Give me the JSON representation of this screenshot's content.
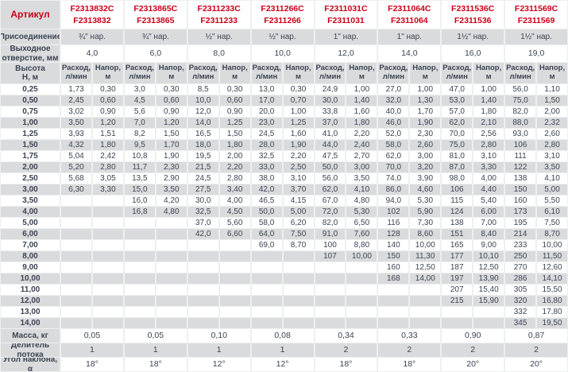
{
  "colors": {
    "accent_red": "#cc0019",
    "text_navy": "#3b4453",
    "stripe_gray": "#dadbdc",
    "cell_white": "#ffffff",
    "gutter_gray": "#eef0f0"
  },
  "chart_data": {
    "type": "table",
    "corner_label": "Артикул",
    "row_labels": {
      "connection": "Присоединение",
      "outlet": "Выходное\nотверстие, мм",
      "height": "Высота\nН, м",
      "mass": "Масса, кг",
      "divider": "Делитель потока",
      "angle": "Угол наклона, α"
    },
    "sub_headers": {
      "flow": "Расход,\nл/мин",
      "head": "Напор,\nм"
    },
    "products": [
      {
        "articles": [
          "F2313832C",
          "F2313832"
        ],
        "connection": "¾\" нар.",
        "outlet_mm": "4,0",
        "mass_kg": "0,05",
        "flow_divider": "1",
        "angle": "18°"
      },
      {
        "articles": [
          "F2313865C",
          "F2313865"
        ],
        "connection": "¾\" нар.",
        "outlet_mm": "6,0",
        "mass_kg": "0,05",
        "flow_divider": "1",
        "angle": "18°"
      },
      {
        "articles": [
          "F2311233C",
          "F2311233"
        ],
        "connection": "½\" нар.",
        "outlet_mm": "8,0",
        "mass_kg": "0,10",
        "flow_divider": "1",
        "angle": "12°"
      },
      {
        "articles": [
          "F2311266C",
          "F2311266"
        ],
        "connection": "½\" нар.",
        "outlet_mm": "10,0",
        "mass_kg": "0,08",
        "flow_divider": "1",
        "angle": "12°"
      },
      {
        "articles": [
          "F2311031C",
          "F2311031"
        ],
        "connection": "1\" нар.",
        "outlet_mm": "12,0",
        "mass_kg": "0,34",
        "flow_divider": "2",
        "angle": "18°"
      },
      {
        "articles": [
          "F2311064C",
          "F2311064"
        ],
        "connection": "1\" нар.",
        "outlet_mm": "14,0",
        "mass_kg": "0,33",
        "flow_divider": "2",
        "angle": "18°"
      },
      {
        "articles": [
          "F2311536C",
          "F2311536"
        ],
        "connection": "1½\" нар.",
        "outlet_mm": "16,0",
        "mass_kg": "0,90",
        "flow_divider": "2",
        "angle": "20°"
      },
      {
        "articles": [
          "F2311569C",
          "F2311569"
        ],
        "connection": "1½\" нар.",
        "outlet_mm": "19,0",
        "mass_kg": "0,87",
        "flow_divider": "2",
        "angle": "20°"
      }
    ],
    "heights": [
      "0,25",
      "0,50",
      "0,75",
      "1,00",
      "1,25",
      "1,50",
      "1,75",
      "2,00",
      "2,50",
      "3,00",
      "3,50",
      "4,00",
      "5,00",
      "6,00",
      "7,00",
      "8,00",
      "9,00",
      "10,00",
      "11,00",
      "12,00",
      "13,00",
      "14,00"
    ],
    "rows": [
      [
        [
          "1,73",
          "0,30"
        ],
        [
          "3,0",
          "0,30"
        ],
        [
          "8,5",
          "0,30"
        ],
        [
          "13,0",
          "0,30"
        ],
        [
          "24,9",
          "1,00"
        ],
        [
          "27,0",
          "1,00"
        ],
        [
          "47,0",
          "1,00"
        ],
        [
          "56,0",
          "1,10"
        ]
      ],
      [
        [
          "2,45",
          "0,60"
        ],
        [
          "4,5",
          "0,60"
        ],
        [
          "10,0",
          "0,60"
        ],
        [
          "17,0",
          "0,70"
        ],
        [
          "30,0",
          "1,40"
        ],
        [
          "32,0",
          "1,30"
        ],
        [
          "53,0",
          "1,40"
        ],
        [
          "75,0",
          "1,50"
        ]
      ],
      [
        [
          "3,02",
          "0,90"
        ],
        [
          "5,6",
          "0,90"
        ],
        [
          "12,0",
          "0,90"
        ],
        [
          "20,0",
          "1,00"
        ],
        [
          "33,8",
          "1,60"
        ],
        [
          "40,0",
          "1,70"
        ],
        [
          "57,0",
          "1,80"
        ],
        [
          "82,0",
          "2,00"
        ]
      ],
      [
        [
          "3,50",
          "1,20"
        ],
        [
          "7,0",
          "1,20"
        ],
        [
          "14,0",
          "1,25"
        ],
        [
          "23,0",
          "1,25"
        ],
        [
          "37,0",
          "1,80"
        ],
        [
          "46,0",
          "1,90"
        ],
        [
          "62,0",
          "2,10"
        ],
        [
          "88,0",
          "2,32"
        ]
      ],
      [
        [
          "3,93",
          "1,51"
        ],
        [
          "8,2",
          "1,50"
        ],
        [
          "16,5",
          "1,50"
        ],
        [
          "24,5",
          "1,60"
        ],
        [
          "41,0",
          "2,20"
        ],
        [
          "52,0",
          "2,30"
        ],
        [
          "70,0",
          "2,56"
        ],
        [
          "93,0",
          "2,60"
        ]
      ],
      [
        [
          "4,32",
          "1,80"
        ],
        [
          "9,5",
          "1,70"
        ],
        [
          "18,0",
          "1,80"
        ],
        [
          "28,0",
          "1,90"
        ],
        [
          "44,0",
          "2,40"
        ],
        [
          "58,0",
          "2,60"
        ],
        [
          "75,0",
          "2,80"
        ],
        [
          "106",
          "2,80"
        ]
      ],
      [
        [
          "5,04",
          "2,42"
        ],
        [
          "10,8",
          "1,90"
        ],
        [
          "19,5",
          "2,00"
        ],
        [
          "32,5",
          "2,20"
        ],
        [
          "47,5",
          "2,70"
        ],
        [
          "62,0",
          "3,00"
        ],
        [
          "81,0",
          "3,10"
        ],
        [
          "111",
          "3,10"
        ]
      ],
      [
        [
          "5,20",
          "2,80"
        ],
        [
          "11,7",
          "2,30"
        ],
        [
          "21,5",
          "2,20"
        ],
        [
          "33,0",
          "2,50"
        ],
        [
          "50,0",
          "3,00"
        ],
        [
          "70,0",
          "3,20"
        ],
        [
          "87,0",
          "3,30"
        ],
        [
          "122",
          "3,50"
        ]
      ],
      [
        [
          "5,68",
          "3,05"
        ],
        [
          "13,5",
          "2,90"
        ],
        [
          "24,5",
          "2,80"
        ],
        [
          "38,0",
          "3,10"
        ],
        [
          "56,0",
          "3,50"
        ],
        [
          "74,0",
          "3,90"
        ],
        [
          "98,0",
          "4,00"
        ],
        [
          "138",
          "4,10"
        ]
      ],
      [
        [
          "6,30",
          "3,30"
        ],
        [
          "15,0",
          "3,50"
        ],
        [
          "27,5",
          "3,40"
        ],
        [
          "42,0",
          "3,70"
        ],
        [
          "62,0",
          "4,10"
        ],
        [
          "86,0",
          "4,60"
        ],
        [
          "106",
          "4,40"
        ],
        [
          "150",
          "5,00"
        ]
      ],
      [
        null,
        [
          "16,0",
          "4,20"
        ],
        [
          "30,0",
          "4,00"
        ],
        [
          "46,5",
          "4,15"
        ],
        [
          "67,0",
          "4,80"
        ],
        [
          "94,0",
          "5,30"
        ],
        [
          "115",
          "5,40"
        ],
        [
          "160",
          "5,50"
        ]
      ],
      [
        null,
        [
          "16,8",
          "4,80"
        ],
        [
          "32,5",
          "4,50"
        ],
        [
          "50,0",
          "5,00"
        ],
        [
          "72,0",
          "5,30"
        ],
        [
          "102",
          "5,90"
        ],
        [
          "124",
          "6,00"
        ],
        [
          "173",
          "6,10"
        ]
      ],
      [
        null,
        null,
        [
          "37,0",
          "5,60"
        ],
        [
          "58,0",
          "6,20"
        ],
        [
          "82,0",
          "6,50"
        ],
        [
          "116",
          "7,30"
        ],
        [
          "138",
          "7,00"
        ],
        [
          "195",
          "7,50"
        ]
      ],
      [
        null,
        null,
        [
          "42,0",
          "6,60"
        ],
        [
          "64,0",
          "7,50"
        ],
        [
          "91,0",
          "7,60"
        ],
        [
          "128",
          "8,60"
        ],
        [
          "151",
          "8,40"
        ],
        [
          "214",
          "8,70"
        ]
      ],
      [
        null,
        null,
        null,
        [
          "69,0",
          "8,70"
        ],
        [
          "100",
          "8,80"
        ],
        [
          "140",
          "10,00"
        ],
        [
          "165",
          "9,00"
        ],
        [
          "233",
          "10,00"
        ]
      ],
      [
        null,
        null,
        null,
        null,
        [
          "107",
          "10,00"
        ],
        [
          "150",
          "11,30"
        ],
        [
          "177",
          "10,10"
        ],
        [
          "250",
          "11,50"
        ]
      ],
      [
        null,
        null,
        null,
        null,
        null,
        [
          "160",
          "12,50"
        ],
        [
          "187",
          "12,50"
        ],
        [
          "270",
          "12,60"
        ]
      ],
      [
        null,
        null,
        null,
        null,
        null,
        [
          "168",
          "14,00"
        ],
        [
          "197",
          "13,90"
        ],
        [
          "286",
          "14,10"
        ]
      ],
      [
        null,
        null,
        null,
        null,
        null,
        null,
        [
          "207",
          "15,40"
        ],
        [
          "305",
          "15,50"
        ]
      ],
      [
        null,
        null,
        null,
        null,
        null,
        null,
        [
          "215",
          "15,90"
        ],
        [
          "320",
          "16,80"
        ]
      ],
      [
        null,
        null,
        null,
        null,
        null,
        null,
        null,
        [
          "332",
          "17,80"
        ]
      ],
      [
        null,
        null,
        null,
        null,
        null,
        null,
        null,
        [
          "345",
          "19,50"
        ]
      ]
    ]
  }
}
